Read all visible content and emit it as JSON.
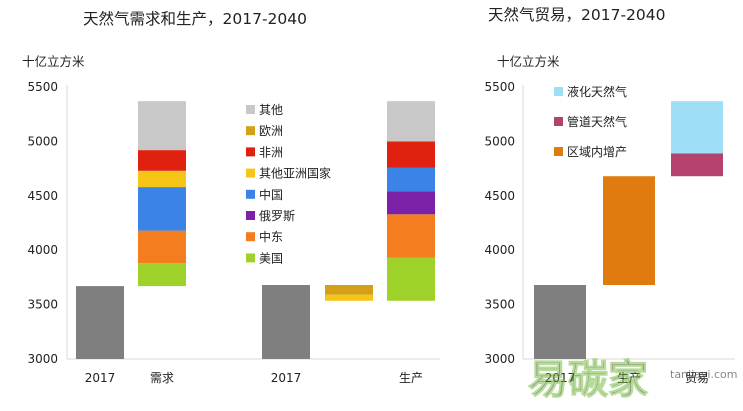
{
  "chart_data": [
    {
      "type": "waterfall-bar",
      "title": "天然气需求和生产，2017-2040",
      "unit_label": "十亿立方米",
      "ylim": [
        3000,
        5500
      ],
      "yticks": [
        "3000",
        "3500",
        "4000",
        "4500",
        "5000",
        "5500"
      ],
      "categories": [
        "2017",
        "需求",
        "2017",
        "生产"
      ],
      "base_bars": [
        {
          "name": "2017 demand",
          "category": "2017",
          "value": 3670,
          "color": "#7f7f7f"
        },
        {
          "name": "2017 production",
          "category": "2017",
          "value": 3680,
          "color": "#7f7f7f"
        }
      ],
      "legend": [
        {
          "label": "其他",
          "color": "#c8c8c8"
        },
        {
          "label": "欧洲",
          "color": "#d4a017"
        },
        {
          "label": "非洲",
          "color": "#e0210f"
        },
        {
          "label": "其他亚洲国家",
          "color": "#f5c518"
        },
        {
          "label": "中国",
          "color": "#3b83e6"
        },
        {
          "label": "俄罗斯",
          "color": "#7a21a8"
        },
        {
          "label": "中东",
          "color": "#f47d1f"
        },
        {
          "label": "美国",
          "color": "#9fd12b"
        }
      ],
      "demand_segments": [
        {
          "name": "美国",
          "from": 3670,
          "to": 3880,
          "color": "#9fd12b"
        },
        {
          "name": "中东",
          "from": 3880,
          "to": 4180,
          "color": "#f47d1f"
        },
        {
          "name": "中国",
          "from": 4180,
          "to": 4580,
          "color": "#3b83e6"
        },
        {
          "name": "其他亚洲国家",
          "from": 4580,
          "to": 4730,
          "color": "#f5c518"
        },
        {
          "name": "非洲",
          "from": 4730,
          "to": 4920,
          "color": "#e0210f"
        },
        {
          "name": "其他",
          "from": 4920,
          "to": 5370,
          "color": "#c8c8c8"
        }
      ],
      "production_decline": [
        {
          "name": "欧洲",
          "from": 3590,
          "to": 3680,
          "color": "#d4a017"
        },
        {
          "name": "其他亚洲国家",
          "from": 3535,
          "to": 3590,
          "color": "#f5c518"
        }
      ],
      "production_segments": [
        {
          "name": "美国",
          "from": 3535,
          "to": 3930,
          "color": "#9fd12b"
        },
        {
          "name": "中东",
          "from": 3930,
          "to": 4330,
          "color": "#f47d1f"
        },
        {
          "name": "俄罗斯",
          "from": 4330,
          "to": 4540,
          "color": "#7a21a8"
        },
        {
          "name": "中国",
          "from": 4540,
          "to": 4760,
          "color": "#3b83e6"
        },
        {
          "name": "非洲",
          "from": 4760,
          "to": 5000,
          "color": "#e0210f"
        },
        {
          "name": "其他",
          "from": 5000,
          "to": 5370,
          "color": "#c8c8c8"
        }
      ]
    },
    {
      "type": "waterfall-bar",
      "title": "天然气贸易，2017-2040",
      "unit_label": "十亿立方米",
      "ylim": [
        3000,
        5500
      ],
      "yticks": [
        "3000",
        "3500",
        "4000",
        "4500",
        "5000",
        "5500"
      ],
      "categories": [
        "2017",
        "生产",
        "贸易"
      ],
      "legend": [
        {
          "label": "液化天然气",
          "color": "#9edff7"
        },
        {
          "label": "管道天然气",
          "color": "#b3426e"
        },
        {
          "label": "区域内增产",
          "color": "#e07b10"
        }
      ],
      "bars": [
        {
          "name": "2017",
          "from": 3000,
          "to": 3680,
          "color": "#7f7f7f"
        },
        {
          "name": "区域内增产",
          "from": 3680,
          "to": 4680,
          "color": "#e07b10"
        },
        {
          "name": "管道天然气",
          "from": 4680,
          "to": 4890,
          "color": "#b3426e"
        },
        {
          "name": "液化天然气",
          "from": 4890,
          "to": 5370,
          "color": "#9edff7"
        }
      ]
    }
  ],
  "watermark": {
    "text": "易碳家",
    "url_fragment": "tanjiayi.com"
  }
}
